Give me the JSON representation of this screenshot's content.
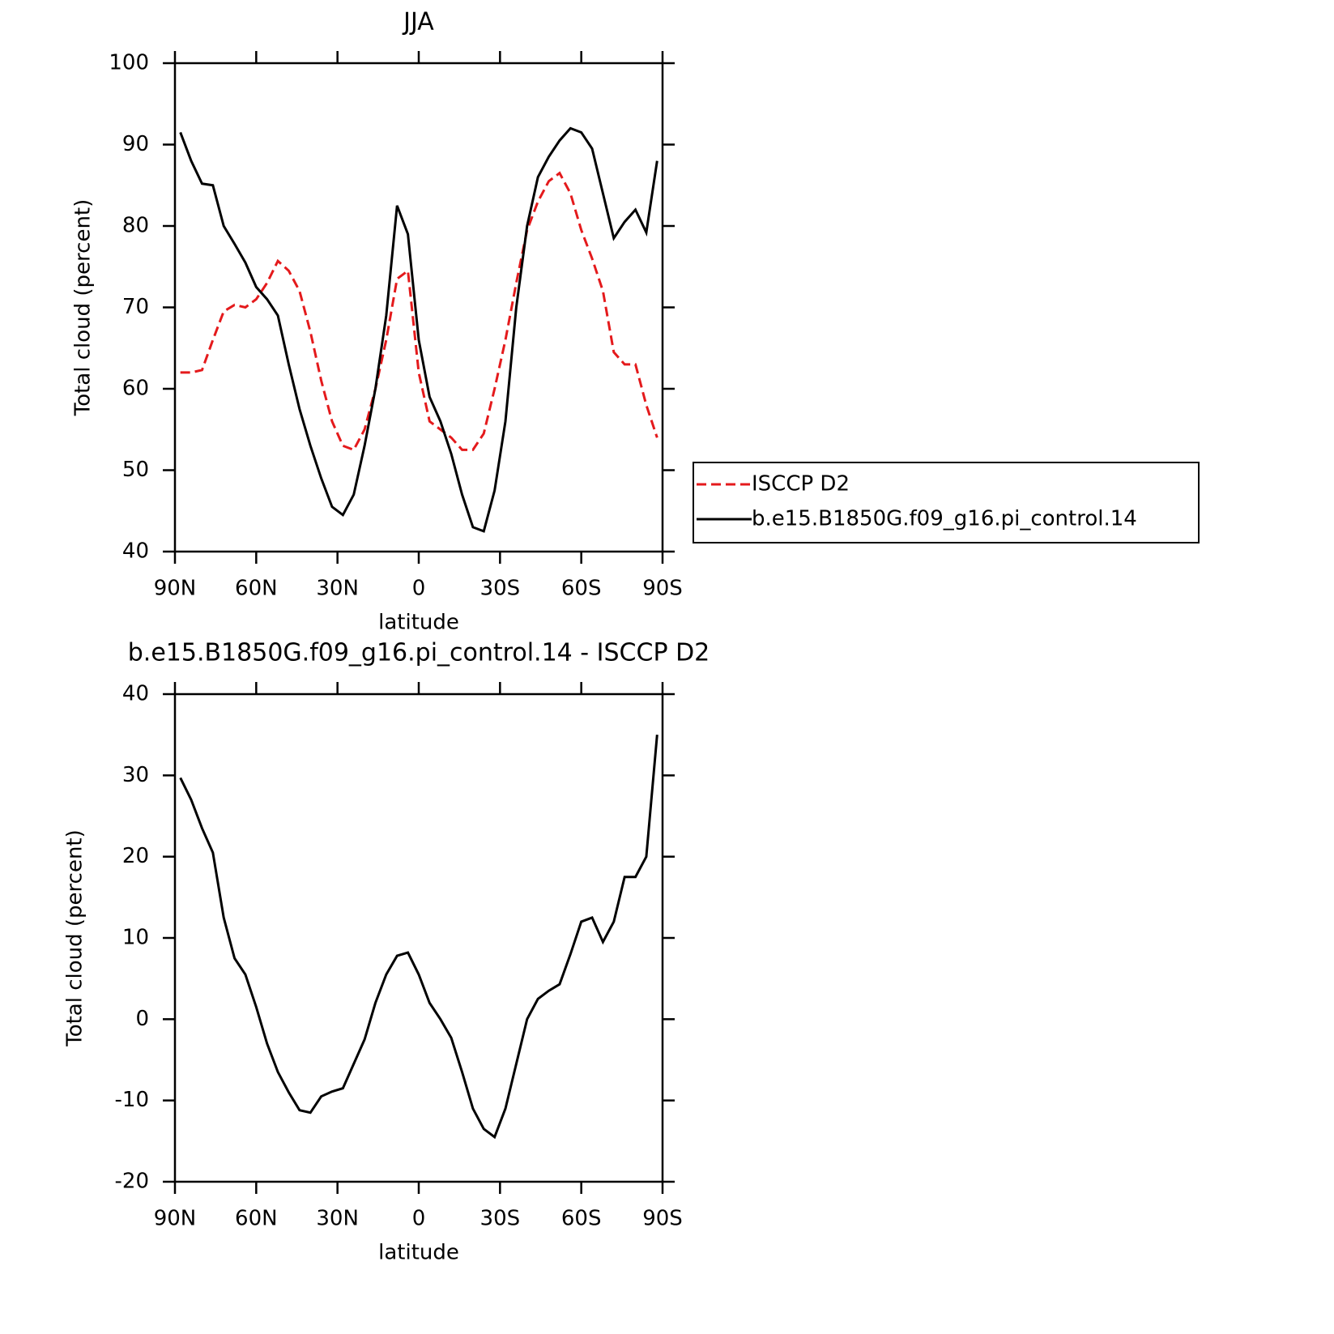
{
  "chart_data": [
    {
      "type": "line",
      "title": "JJA",
      "x_label": "latitude",
      "y_label": "Total cloud (percent)",
      "x": [
        88,
        84,
        80,
        76,
        72,
        68,
        64,
        60,
        56,
        52,
        48,
        44,
        40,
        36,
        32,
        28,
        24,
        20,
        16,
        12,
        8,
        4,
        0,
        -4,
        -8,
        -12,
        -16,
        -20,
        -24,
        -28,
        -32,
        -36,
        -40,
        -44,
        -48,
        -52,
        -56,
        -60,
        -64,
        -68,
        -72,
        -76,
        -80,
        -84,
        -88
      ],
      "xlim": [
        90,
        -90
      ],
      "xticks": [
        {
          "value": 90,
          "label": "90N"
        },
        {
          "value": 60,
          "label": "60N"
        },
        {
          "value": 30,
          "label": "30N"
        },
        0,
        {
          "value": -30,
          "label": "30S"
        },
        {
          "value": -60,
          "label": "60S"
        },
        {
          "value": -90,
          "label": "90S"
        }
      ],
      "ylim": [
        40,
        100
      ],
      "yticks": [
        40,
        50,
        60,
        70,
        80,
        90,
        100
      ],
      "legend": true,
      "series": [
        {
          "name": "ISCCP D2",
          "color": "#e41a1c",
          "line_style": "dashed",
          "values": [
            62,
            62,
            62.3,
            66,
            69.5,
            70.3,
            70,
            71,
            73,
            75.7,
            74.5,
            72,
            67,
            61,
            56,
            53,
            52.5,
            55,
            60,
            66,
            73.5,
            74.5,
            62,
            56,
            55,
            54,
            52.5,
            52.5,
            54.5,
            60,
            66,
            73,
            79.5,
            83,
            85.5,
            86.5,
            84,
            79.5,
            76,
            72,
            64.5,
            63,
            63,
            58,
            54
          ]
        },
        {
          "name": "b.e15.B1850G.f09_g16.pi_control.14",
          "color": "#000000",
          "line_style": "solid",
          "values": [
            91.5,
            88,
            85.2,
            85,
            80,
            77.8,
            75.5,
            72.5,
            71,
            69,
            63,
            57.5,
            53,
            49,
            45.5,
            44.5,
            47,
            53,
            60,
            69,
            82.5,
            79,
            66,
            59,
            56,
            52,
            47,
            43,
            42.5,
            47.5,
            56,
            70,
            80,
            86,
            88.5,
            90.5,
            92,
            91.5,
            89.5,
            84,
            78.5,
            80.5,
            82,
            79.2,
            88
          ]
        }
      ]
    },
    {
      "type": "line",
      "title": "b.e15.B1850G.f09_g16.pi_control.14 - ISCCP D2",
      "x_label": "latitude",
      "y_label": "Total cloud (percent)",
      "x": [
        88,
        84,
        80,
        76,
        72,
        68,
        64,
        60,
        56,
        52,
        48,
        44,
        40,
        36,
        32,
        28,
        24,
        20,
        16,
        12,
        8,
        4,
        0,
        -4,
        -8,
        -12,
        -16,
        -20,
        -24,
        -28,
        -32,
        -36,
        -40,
        -44,
        -48,
        -52,
        -56,
        -60,
        -64,
        -68,
        -72,
        -76,
        -80,
        -84,
        -88
      ],
      "xlim": [
        90,
        -90
      ],
      "xticks": [
        {
          "value": 90,
          "label": "90N"
        },
        {
          "value": 60,
          "label": "60N"
        },
        {
          "value": 30,
          "label": "30N"
        },
        0,
        {
          "value": -30,
          "label": "30S"
        },
        {
          "value": -60,
          "label": "60S"
        },
        {
          "value": -90,
          "label": "90S"
        }
      ],
      "ylim": [
        -20,
        40
      ],
      "yticks": [
        -20,
        -10,
        0,
        10,
        20,
        30,
        40
      ],
      "series": [
        {
          "color": "#000000",
          "line_style": "solid",
          "values": [
            29.7,
            27,
            23.5,
            20.5,
            12.5,
            7.5,
            5.5,
            1.5,
            -3,
            -6.5,
            -9,
            -11.2,
            -11.5,
            -9.5,
            -8.9,
            -8.5,
            -5.5,
            -2.5,
            2,
            5.5,
            7.8,
            8.2,
            5.5,
            2,
            0,
            -2.3,
            -6.5,
            -11,
            -13.5,
            -14.5,
            -11,
            -5.5,
            0,
            2.5,
            3.5,
            4.3,
            8,
            12,
            12.5,
            9.5,
            12,
            17.5,
            17.5,
            20,
            35
          ]
        }
      ]
    }
  ]
}
